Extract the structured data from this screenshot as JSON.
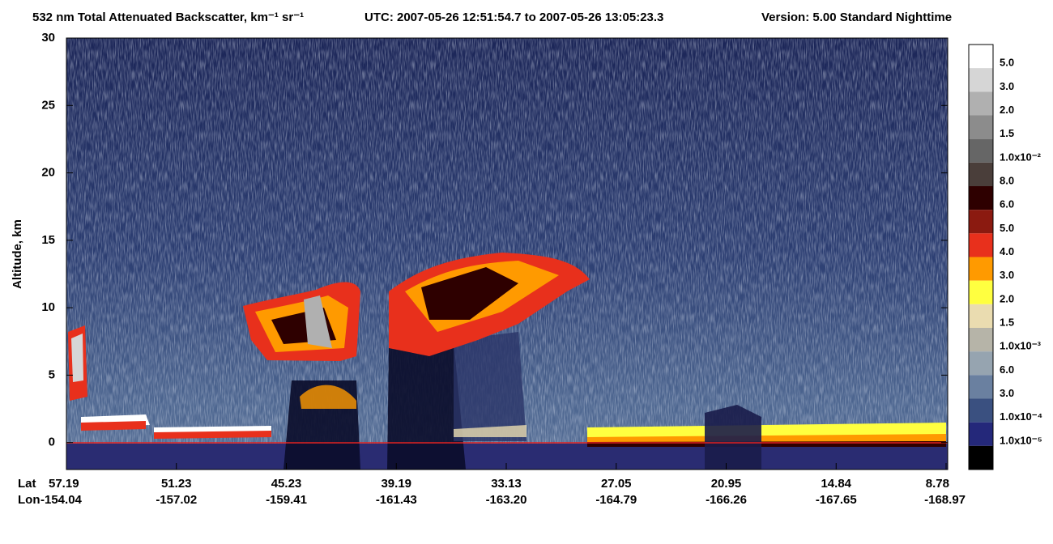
{
  "chart_data": {
    "type": "heatmap",
    "title": "532 nm Total Attenuated Backscatter, km⁻¹ sr⁻¹",
    "time_range": "UTC:  2007-05-26 12:51:54.7  to  2007-05-26 13:05:23.3",
    "version": "Version: 5.00  Standard  Nighttime",
    "y_label": "Altitude, km",
    "ylim": [
      -2,
      30
    ],
    "yticks": [
      0,
      5,
      10,
      15,
      20,
      25,
      30
    ],
    "x_row_labels": [
      "Lat",
      "Lon"
    ],
    "lat": [
      "57.19",
      "51.23",
      "45.23",
      "39.19",
      "33.13",
      "27.05",
      "20.95",
      "14.84",
      "8.78"
    ],
    "lon": [
      "-154.04",
      "-157.02",
      "-159.41",
      "-161.43",
      "-163.20",
      "-164.79",
      "-166.26",
      "-167.65",
      "-168.97"
    ],
    "colorbar": {
      "labels": [
        "5.0",
        "3.0",
        "2.0",
        "1.5",
        "1.0x10⁻²",
        "8.0",
        "6.0",
        "5.0",
        "4.0",
        "3.0",
        "2.0",
        "1.5",
        "1.0x10⁻³",
        "6.0",
        "3.0",
        "1.0x10⁻⁴",
        "1.0x10⁻⁵"
      ],
      "colors": [
        "#ffffff",
        "#d6d6d6",
        "#b0b0b0",
        "#8c8c8c",
        "#666666",
        "#4a3e3a",
        "#2e0000",
        "#8b1a10",
        "#e8301c",
        "#ff9a00",
        "#ffff40",
        "#eadcb0",
        "#b6b4a8",
        "#96a4b0",
        "#6a80a0",
        "#3a5080",
        "#24287a",
        "#000000"
      ]
    }
  }
}
